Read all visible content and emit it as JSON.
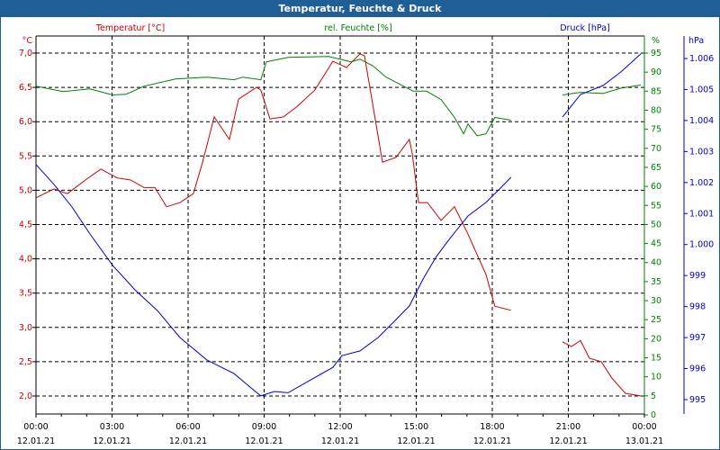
{
  "window_title": "Temperatur, Feuchte & Druck",
  "chart_data": {
    "type": "line",
    "title": "Temperatur, Feuchte & Druck",
    "grid": true,
    "x_ticks": [
      {
        "time": "00:00",
        "date": "12.01.21"
      },
      {
        "time": "03:00",
        "date": "12.01.21"
      },
      {
        "time": "06:00",
        "date": "12.01.21"
      },
      {
        "time": "09:00",
        "date": "12.01.21"
      },
      {
        "time": "12:00",
        "date": "12.01.21"
      },
      {
        "time": "15:00",
        "date": "12.01.21"
      },
      {
        "time": "18:00",
        "date": "12.01.21"
      },
      {
        "time": "21:00",
        "date": "12.01.21"
      },
      {
        "time": "00:00",
        "date": "13.01.21"
      }
    ],
    "xlim_hours": [
      0,
      24
    ],
    "axes": {
      "temp": {
        "label": "Temperatur [°C]",
        "unit": "°C",
        "ylim": [
          2.0,
          7.0
        ],
        "ticks": [
          "7,0",
          "6,5",
          "6,0",
          "5,5",
          "5,0",
          "4,5",
          "4,0",
          "3,5",
          "3,0",
          "2,5",
          "2,0"
        ],
        "color": "#cc0000"
      },
      "hum": {
        "label": "rel. Feuchte [%]",
        "unit": "%",
        "ylim": [
          0,
          95
        ],
        "ticks": [
          "95",
          "90",
          "85",
          "80",
          "75",
          "70",
          "65",
          "60",
          "55",
          "50",
          "45",
          "40",
          "35",
          "30",
          "25",
          "20",
          "15",
          "10",
          "5",
          "0"
        ],
        "color": "#008000"
      },
      "press": {
        "label": "Druck [hPa]",
        "unit": "hPa",
        "ylim": [
          995,
          1006
        ],
        "ticks": [
          "1.006",
          "1.005",
          "1.004",
          "1.003",
          "1.002",
          "1.001",
          "1.000",
          "999",
          "998",
          "997",
          "996",
          "995"
        ],
        "color": "#0000cc"
      }
    },
    "series": [
      {
        "name": "Temperatur",
        "axis": "temp",
        "color": "#cc0000",
        "segments": [
          [
            [
              0,
              4.89
            ],
            [
              0.71,
              5.02
            ],
            [
              1.24,
              4.95
            ],
            [
              1.95,
              5.15
            ],
            [
              2.56,
              5.31
            ],
            [
              3.2,
              5.18
            ],
            [
              3.73,
              5.15
            ],
            [
              4.26,
              5.04
            ],
            [
              4.69,
              5.04
            ],
            [
              5.15,
              4.76
            ],
            [
              5.68,
              4.82
            ],
            [
              6.21,
              4.95
            ],
            [
              6.57,
              5.41
            ],
            [
              7.03,
              6.07
            ],
            [
              7.63,
              5.74
            ],
            [
              7.99,
              6.33
            ],
            [
              8.7,
              6.5
            ],
            [
              8.87,
              6.46
            ],
            [
              9.23,
              6.04
            ],
            [
              9.76,
              6.07
            ],
            [
              10.3,
              6.22
            ],
            [
              11,
              6.46
            ],
            [
              11.71,
              6.88
            ],
            [
              12.25,
              6.79
            ],
            [
              12.78,
              6.99
            ],
            [
              12.96,
              6.96
            ],
            [
              13.67,
              5.41
            ],
            [
              14.2,
              5.48
            ],
            [
              14.73,
              5.74
            ],
            [
              14.84,
              5.54
            ],
            [
              15.09,
              4.82
            ],
            [
              15.44,
              4.82
            ],
            [
              15.98,
              4.56
            ],
            [
              16.51,
              4.76
            ],
            [
              17.04,
              4.36
            ],
            [
              17.75,
              3.77
            ],
            [
              18.1,
              3.31
            ],
            [
              18.74,
              3.25
            ]
          ],
          [
            [
              20.77,
              2.79
            ],
            [
              21.12,
              2.72
            ],
            [
              21.48,
              2.81
            ],
            [
              21.83,
              2.55
            ],
            [
              22.3,
              2.5
            ],
            [
              22.72,
              2.26
            ],
            [
              23.25,
              2.04
            ],
            [
              23.86,
              2.0
            ]
          ]
        ]
      },
      {
        "name": "rel. Feuchte",
        "axis": "hum",
        "color": "#008000",
        "segments": [
          [
            [
              0,
              86.3
            ],
            [
              1.07,
              84.9
            ],
            [
              2.13,
              85.6
            ],
            [
              3.02,
              84
            ],
            [
              3.55,
              84.2
            ],
            [
              4.26,
              86.3
            ],
            [
              5.5,
              88.2
            ],
            [
              6.74,
              88.7
            ],
            [
              7.81,
              88
            ],
            [
              8.16,
              88.7
            ],
            [
              8.87,
              88
            ],
            [
              9.09,
              92.7
            ],
            [
              9.94,
              93.9
            ],
            [
              11.54,
              94.1
            ],
            [
              12.43,
              92.7
            ],
            [
              12.78,
              93.4
            ],
            [
              13.28,
              91.7
            ],
            [
              13.81,
              88.7
            ],
            [
              14.88,
              85
            ],
            [
              15.41,
              85
            ],
            [
              15.98,
              82.8
            ],
            [
              16.51,
              78.1
            ],
            [
              16.87,
              73.8
            ],
            [
              17.04,
              76.4
            ],
            [
              17.4,
              73.3
            ],
            [
              17.75,
              73.8
            ],
            [
              18.1,
              78.1
            ],
            [
              18.74,
              77.4
            ]
          ],
          [
            [
              20.77,
              84
            ],
            [
              21.48,
              84.7
            ],
            [
              22.37,
              84.4
            ],
            [
              23.08,
              85.8
            ],
            [
              23.86,
              86.6
            ]
          ]
        ]
      },
      {
        "name": "Druck",
        "axis": "press",
        "color": "#0000cc",
        "segments": [
          [
            [
              0,
              1002.58
            ],
            [
              0.71,
              1001.94
            ],
            [
              1.42,
              1001.21
            ],
            [
              2.13,
              1000.34
            ],
            [
              3.02,
              999.33
            ],
            [
              3.9,
              998.54
            ],
            [
              4.79,
              997.87
            ],
            [
              5.68,
              997.0
            ],
            [
              6.74,
              996.28
            ],
            [
              7.81,
              995.84
            ],
            [
              8.52,
              995.35
            ],
            [
              8.87,
              995.12
            ],
            [
              9.4,
              995.26
            ],
            [
              9.94,
              995.22
            ],
            [
              10.65,
              995.55
            ],
            [
              11.71,
              996.04
            ],
            [
              12.07,
              996.42
            ],
            [
              12.78,
              996.57
            ],
            [
              13.49,
              997.0
            ],
            [
              14.2,
              997.58
            ],
            [
              14.73,
              998.02
            ],
            [
              15.27,
              998.89
            ],
            [
              15.8,
              999.62
            ],
            [
              16.33,
              1000.2
            ],
            [
              17.04,
              1000.92
            ],
            [
              17.75,
              1001.36
            ],
            [
              18.28,
              1001.79
            ],
            [
              18.74,
              1002.17
            ]
          ],
          [
            [
              20.77,
              1004.11
            ],
            [
              21.48,
              1004.84
            ],
            [
              22.37,
              1005.13
            ],
            [
              23.08,
              1005.57
            ],
            [
              23.86,
              1006.15
            ]
          ]
        ]
      }
    ]
  }
}
